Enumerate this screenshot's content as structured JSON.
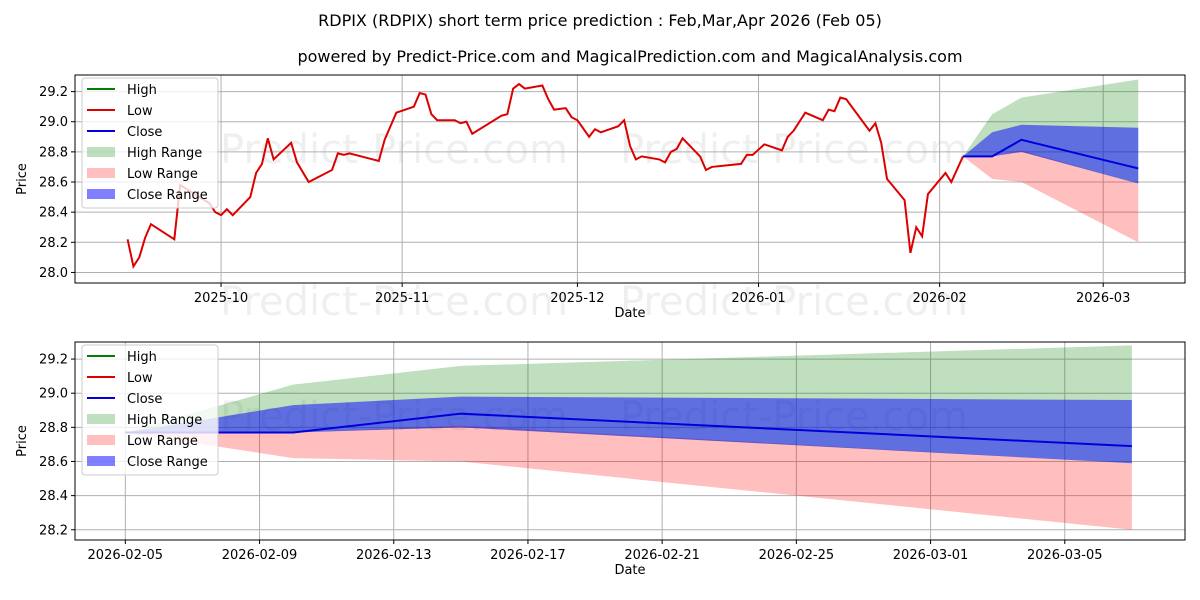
{
  "title": "RDPIX (RDPIX) short term price prediction : Feb,Mar,Apr 2026 (Feb 05)",
  "subtitle": "powered by Predict-Price.com and MagicalPrediction.com and MagicalAnalysis.com",
  "watermark": "Predict-Price.com",
  "colors": {
    "low": "#dd0000",
    "close": "#0000dd",
    "high": "#008000",
    "high_range": "rgba(0,128,0,0.25)",
    "low_range": "rgba(255,0,0,0.25)",
    "close_range": "rgba(0,0,255,0.5)"
  },
  "legend": [
    "High",
    "Low",
    "Close",
    "High Range",
    "Low Range",
    "Close Range"
  ],
  "chart_data": [
    {
      "type": "line",
      "title": "",
      "xlabel": "Date",
      "ylabel": "Price",
      "ylim": [
        27.93,
        29.31
      ],
      "xlim": [
        "2025-09-06",
        "2026-03-15"
      ],
      "yticks": [
        "28.0",
        "28.2",
        "28.4",
        "28.6",
        "28.8",
        "29.0",
        "29.2"
      ],
      "xticks": [
        {
          "d": "2025-10-01",
          "label": "2025-10"
        },
        {
          "d": "2025-11-01",
          "label": "2025-11"
        },
        {
          "d": "2025-12-01",
          "label": "2025-12"
        },
        {
          "d": "2026-01-01",
          "label": "2026-01"
        },
        {
          "d": "2026-02-01",
          "label": "2026-02"
        },
        {
          "d": "2026-03-01",
          "label": "2026-03"
        }
      ],
      "grid": true,
      "legend_position": "top-left"
    },
    {
      "type": "line",
      "title": "",
      "xlabel": "Date",
      "ylabel": "Price",
      "ylim": [
        28.14,
        29.3
      ],
      "xlim": [
        "2026-02-03T12",
        "2026-03-08T14"
      ],
      "yticks": [
        "28.2",
        "28.4",
        "28.6",
        "28.8",
        "29.0",
        "29.2"
      ],
      "xticks": [
        {
          "d": "2026-02-05",
          "label": "2026-02-05"
        },
        {
          "d": "2026-02-09",
          "label": "2026-02-09"
        },
        {
          "d": "2026-02-13",
          "label": "2026-02-13"
        },
        {
          "d": "2026-02-17",
          "label": "2026-02-17"
        },
        {
          "d": "2026-02-21",
          "label": "2026-02-21"
        },
        {
          "d": "2026-02-25",
          "label": "2026-02-25"
        },
        {
          "d": "2026-03-01",
          "label": "2026-03-01"
        },
        {
          "d": "2026-03-05",
          "label": "2026-03-05"
        }
      ],
      "grid": true,
      "legend_position": "top-left",
      "history": false
    }
  ],
  "history_low": [
    [
      "2025-09-15",
      28.22
    ],
    [
      "2025-09-16",
      28.04
    ],
    [
      "2025-09-17",
      28.1
    ],
    [
      "2025-09-18",
      28.23
    ],
    [
      "2025-09-19",
      28.32
    ],
    [
      "2025-09-23",
      28.22
    ],
    [
      "2025-09-24",
      28.58
    ],
    [
      "2025-09-29",
      28.46
    ],
    [
      "2025-09-30",
      28.4
    ],
    [
      "2025-10-01",
      28.38
    ],
    [
      "2025-10-02",
      28.42
    ],
    [
      "2025-10-03",
      28.38
    ],
    [
      "2025-10-06",
      28.5
    ],
    [
      "2025-10-07",
      28.66
    ],
    [
      "2025-10-08",
      28.72
    ],
    [
      "2025-10-09",
      28.89
    ],
    [
      "2025-10-10",
      28.75
    ],
    [
      "2025-10-13",
      28.86
    ],
    [
      "2025-10-14",
      28.73
    ],
    [
      "2025-10-16",
      28.6
    ],
    [
      "2025-10-20",
      28.68
    ],
    [
      "2025-10-21",
      28.79
    ],
    [
      "2025-10-22",
      28.78
    ],
    [
      "2025-10-23",
      28.79
    ],
    [
      "2025-10-27",
      28.75
    ],
    [
      "2025-10-28",
      28.74
    ],
    [
      "2025-10-29",
      28.88
    ],
    [
      "2025-10-31",
      29.06
    ],
    [
      "2025-11-03",
      29.1
    ],
    [
      "2025-11-04",
      29.19
    ],
    [
      "2025-11-05",
      29.18
    ],
    [
      "2025-11-06",
      29.05
    ],
    [
      "2025-11-07",
      29.01
    ],
    [
      "2025-11-10",
      29.01
    ],
    [
      "2025-11-11",
      28.99
    ],
    [
      "2025-11-12",
      29.0
    ],
    [
      "2025-11-13",
      28.92
    ],
    [
      "2025-11-18",
      29.04
    ],
    [
      "2025-11-19",
      29.05
    ],
    [
      "2025-11-20",
      29.22
    ],
    [
      "2025-11-21",
      29.25
    ],
    [
      "2025-11-22",
      29.22
    ],
    [
      "2025-11-25",
      29.24
    ],
    [
      "2025-11-26",
      29.15
    ],
    [
      "2025-11-27",
      29.08
    ],
    [
      "2025-11-29",
      29.09
    ],
    [
      "2025-11-30",
      29.03
    ],
    [
      "2025-12-01",
      29.01
    ],
    [
      "2025-12-03",
      28.9
    ],
    [
      "2025-12-04",
      28.95
    ],
    [
      "2025-12-05",
      28.93
    ],
    [
      "2025-12-08",
      28.97
    ],
    [
      "2025-12-09",
      29.01
    ],
    [
      "2025-12-10",
      28.84
    ],
    [
      "2025-12-11",
      28.75
    ],
    [
      "2025-12-12",
      28.77
    ],
    [
      "2025-12-15",
      28.75
    ],
    [
      "2025-12-16",
      28.73
    ],
    [
      "2025-12-17",
      28.8
    ],
    [
      "2025-12-18",
      28.82
    ],
    [
      "2025-12-19",
      28.89
    ],
    [
      "2025-12-22",
      28.77
    ],
    [
      "2025-12-23",
      28.68
    ],
    [
      "2025-12-24",
      28.7
    ],
    [
      "2025-12-29",
      28.72
    ],
    [
      "2025-12-30",
      28.78
    ],
    [
      "2025-12-31",
      28.78
    ],
    [
      "2026-01-02",
      28.85
    ],
    [
      "2026-01-05",
      28.81
    ],
    [
      "2026-01-06",
      28.9
    ],
    [
      "2026-01-07",
      28.94
    ],
    [
      "2026-01-09",
      29.06
    ],
    [
      "2026-01-12",
      29.01
    ],
    [
      "2026-01-13",
      29.08
    ],
    [
      "2026-01-14",
      29.07
    ],
    [
      "2026-01-15",
      29.16
    ],
    [
      "2026-01-16",
      29.15
    ],
    [
      "2026-01-20",
      28.94
    ],
    [
      "2026-01-21",
      28.99
    ],
    [
      "2026-01-22",
      28.86
    ],
    [
      "2026-01-23",
      28.62
    ],
    [
      "2026-01-26",
      28.48
    ],
    [
      "2026-01-27",
      28.13
    ],
    [
      "2026-01-28",
      28.3
    ],
    [
      "2026-01-29",
      28.24
    ],
    [
      "2026-01-30",
      28.52
    ],
    [
      "2026-02-02",
      28.66
    ],
    [
      "2026-02-03",
      28.6
    ],
    [
      "2026-02-05",
      28.77
    ]
  ],
  "forecast": {
    "dates": [
      "2026-02-05",
      "2026-02-10",
      "2026-02-15",
      "2026-03-07"
    ],
    "close": [
      28.77,
      28.77,
      28.88,
      28.69
    ],
    "high_range": [
      [
        28.77,
        28.77
      ],
      [
        28.77,
        29.05
      ],
      [
        28.8,
        29.16
      ],
      [
        28.59,
        29.28
      ]
    ],
    "low_range": [
      [
        28.77,
        28.77
      ],
      [
        28.62,
        28.77
      ],
      [
        28.6,
        28.81
      ],
      [
        28.2,
        28.59
      ]
    ],
    "close_range": [
      [
        28.77,
        28.77
      ],
      [
        28.77,
        28.93
      ],
      [
        28.8,
        28.98
      ],
      [
        28.59,
        28.96
      ]
    ]
  }
}
